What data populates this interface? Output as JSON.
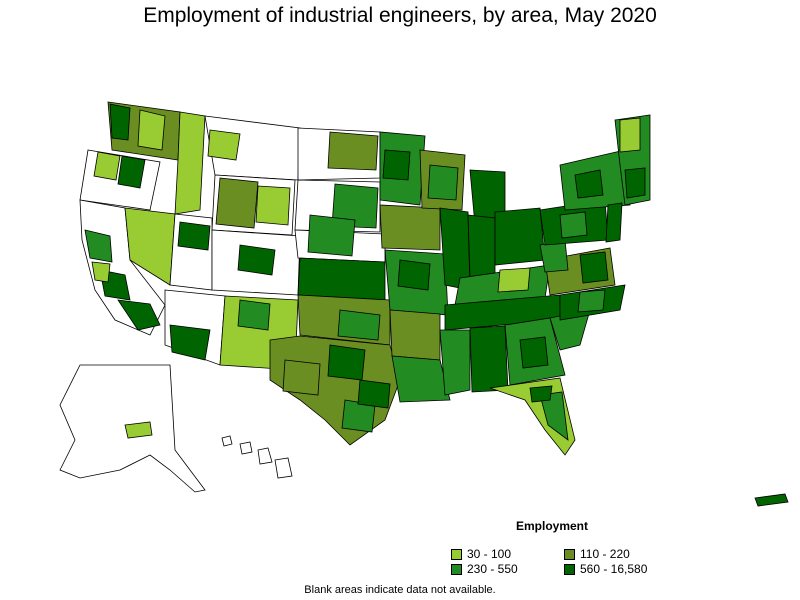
{
  "map": {
    "title": "Employment of industrial engineers, by area, May 2020",
    "footnote": "Blank areas indicate data not available.",
    "legend": {
      "title": "Employment",
      "classes": [
        {
          "label": "30 - 100",
          "color": "#99cc33"
        },
        {
          "label": "110 - 220",
          "color": "#6b8e23"
        },
        {
          "label": "230 - 550",
          "color": "#228b22"
        },
        {
          "label": "560 - 16,580",
          "color": "#006400"
        }
      ]
    },
    "blank_color": "#ffffff",
    "border_color": "#000000"
  }
}
